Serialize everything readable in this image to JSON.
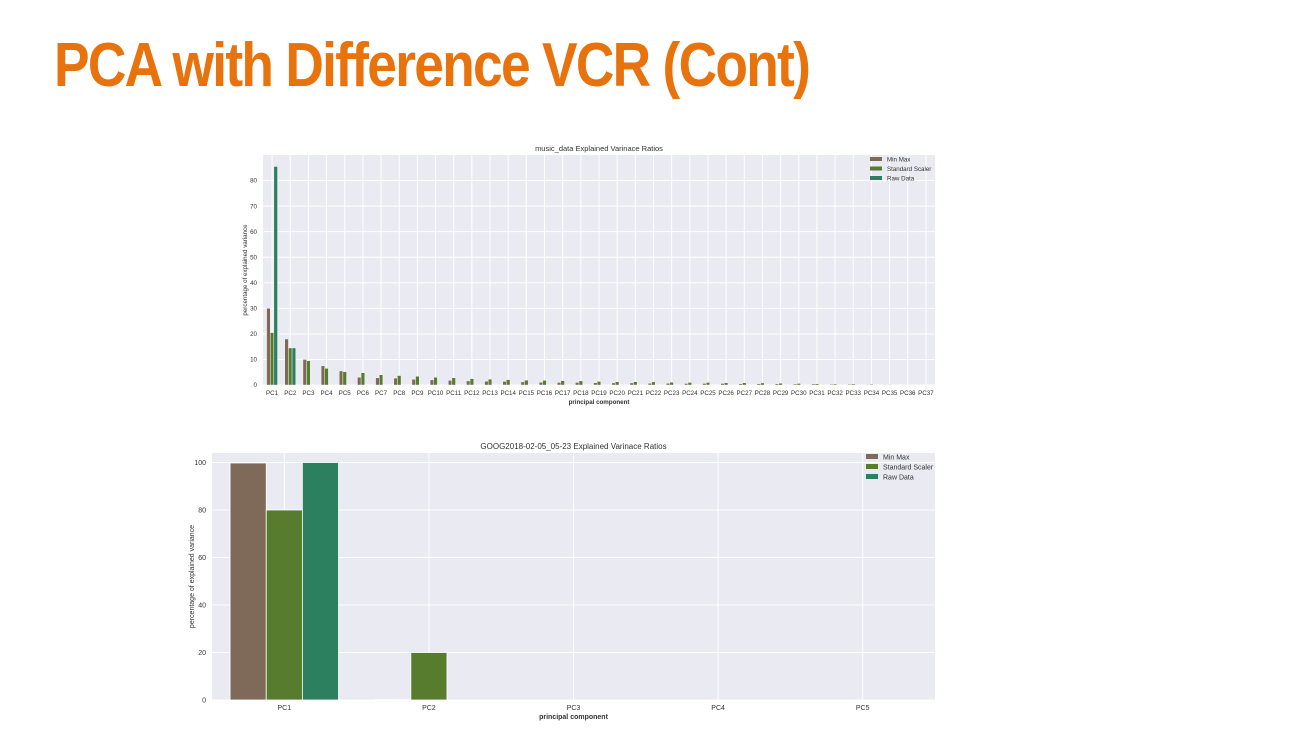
{
  "slide": {
    "title": "PCA with Difference VCR (Cont)"
  },
  "colors": {
    "title": "#e8720c",
    "min_max": "#7f6a5a",
    "standard_scaler": "#587c2d",
    "raw_data": "#2c7f5f",
    "plot_bg": "#eaeaf2",
    "grid": "#ffffff"
  },
  "chart_data": [
    {
      "type": "bar",
      "title": "music_data Explained Varinace Ratios",
      "xlabel": "principal component",
      "ylabel": "percentage of explained variance",
      "ylim": [
        0,
        90
      ],
      "yticks": [
        0,
        10,
        20,
        30,
        40,
        50,
        60,
        70,
        80
      ],
      "grid": true,
      "legend_position": "top-right",
      "categories": [
        "PC1",
        "PC2",
        "PC3",
        "PC4",
        "PC5",
        "PC6",
        "PC7",
        "PC8",
        "PC9",
        "PC10",
        "PC11",
        "PC12",
        "PC13",
        "PC14",
        "PC15",
        "PC16",
        "PC17",
        "PC18",
        "PC19",
        "PC20",
        "PC21",
        "PC22",
        "PC23",
        "PC24",
        "PC25",
        "PC26",
        "PC27",
        "PC28",
        "PC29",
        "PC30",
        "PC31",
        "PC32",
        "PC33",
        "PC34",
        "PC35",
        "PC36",
        "PC37"
      ],
      "series": [
        {
          "name": "Min Max",
          "color": "#7f6a5a",
          "values": [
            30,
            18,
            10,
            7.5,
            5.5,
            3,
            2.8,
            2.7,
            2.2,
            2,
            1.8,
            1.6,
            1.5,
            1.4,
            1.2,
            1.1,
            1,
            1,
            0.9,
            0.8,
            0.8,
            0.7,
            0.7,
            0.6,
            0.6,
            0.6,
            0.5,
            0.5,
            0.5,
            0.4,
            0.4,
            0.3,
            0.3,
            0.2,
            0.2,
            0.1,
            0.1
          ]
        },
        {
          "name": "Standard Scaler",
          "color": "#587c2d",
          "values": [
            20.5,
            14.5,
            9.5,
            6.5,
            5.2,
            4.8,
            4,
            3.7,
            3.4,
            3,
            2.8,
            2.5,
            2.3,
            2.1,
            1.9,
            1.8,
            1.7,
            1.6,
            1.4,
            1.3,
            1.3,
            1.2,
            1.1,
            1,
            1,
            0.9,
            0.9,
            0.8,
            0.7,
            0.6,
            0.5,
            0.4,
            0.4,
            0.3,
            0.2,
            0.1,
            0.1
          ]
        },
        {
          "name": "Raw Data",
          "color": "#2c7f5f",
          "values": [
            85.5,
            14.5,
            0,
            0,
            0,
            0,
            0,
            0,
            0,
            0,
            0,
            0,
            0,
            0,
            0,
            0,
            0,
            0,
            0,
            0,
            0,
            0,
            0,
            0,
            0,
            0,
            0,
            0,
            0,
            0,
            0,
            0,
            0,
            0,
            0,
            0,
            0
          ]
        }
      ]
    },
    {
      "type": "bar",
      "title": "GOOG2018-02-05_05-23 Explained Varinace Ratios",
      "xlabel": "principal component",
      "ylabel": "percentage of explained variance",
      "ylim": [
        0,
        104
      ],
      "yticks": [
        0,
        20,
        40,
        60,
        80,
        100
      ],
      "grid": true,
      "legend_position": "top-right",
      "categories": [
        "PC1",
        "PC2",
        "PC3",
        "PC4",
        "PC5"
      ],
      "series": [
        {
          "name": "Min Max",
          "color": "#7f6a5a",
          "values": [
            99.8,
            0.2,
            0,
            0,
            0
          ]
        },
        {
          "name": "Standard Scaler",
          "color": "#587c2d",
          "values": [
            80,
            20,
            0,
            0,
            0
          ]
        },
        {
          "name": "Raw Data",
          "color": "#2c7f5f",
          "values": [
            100,
            0,
            0,
            0,
            0
          ]
        }
      ]
    }
  ]
}
